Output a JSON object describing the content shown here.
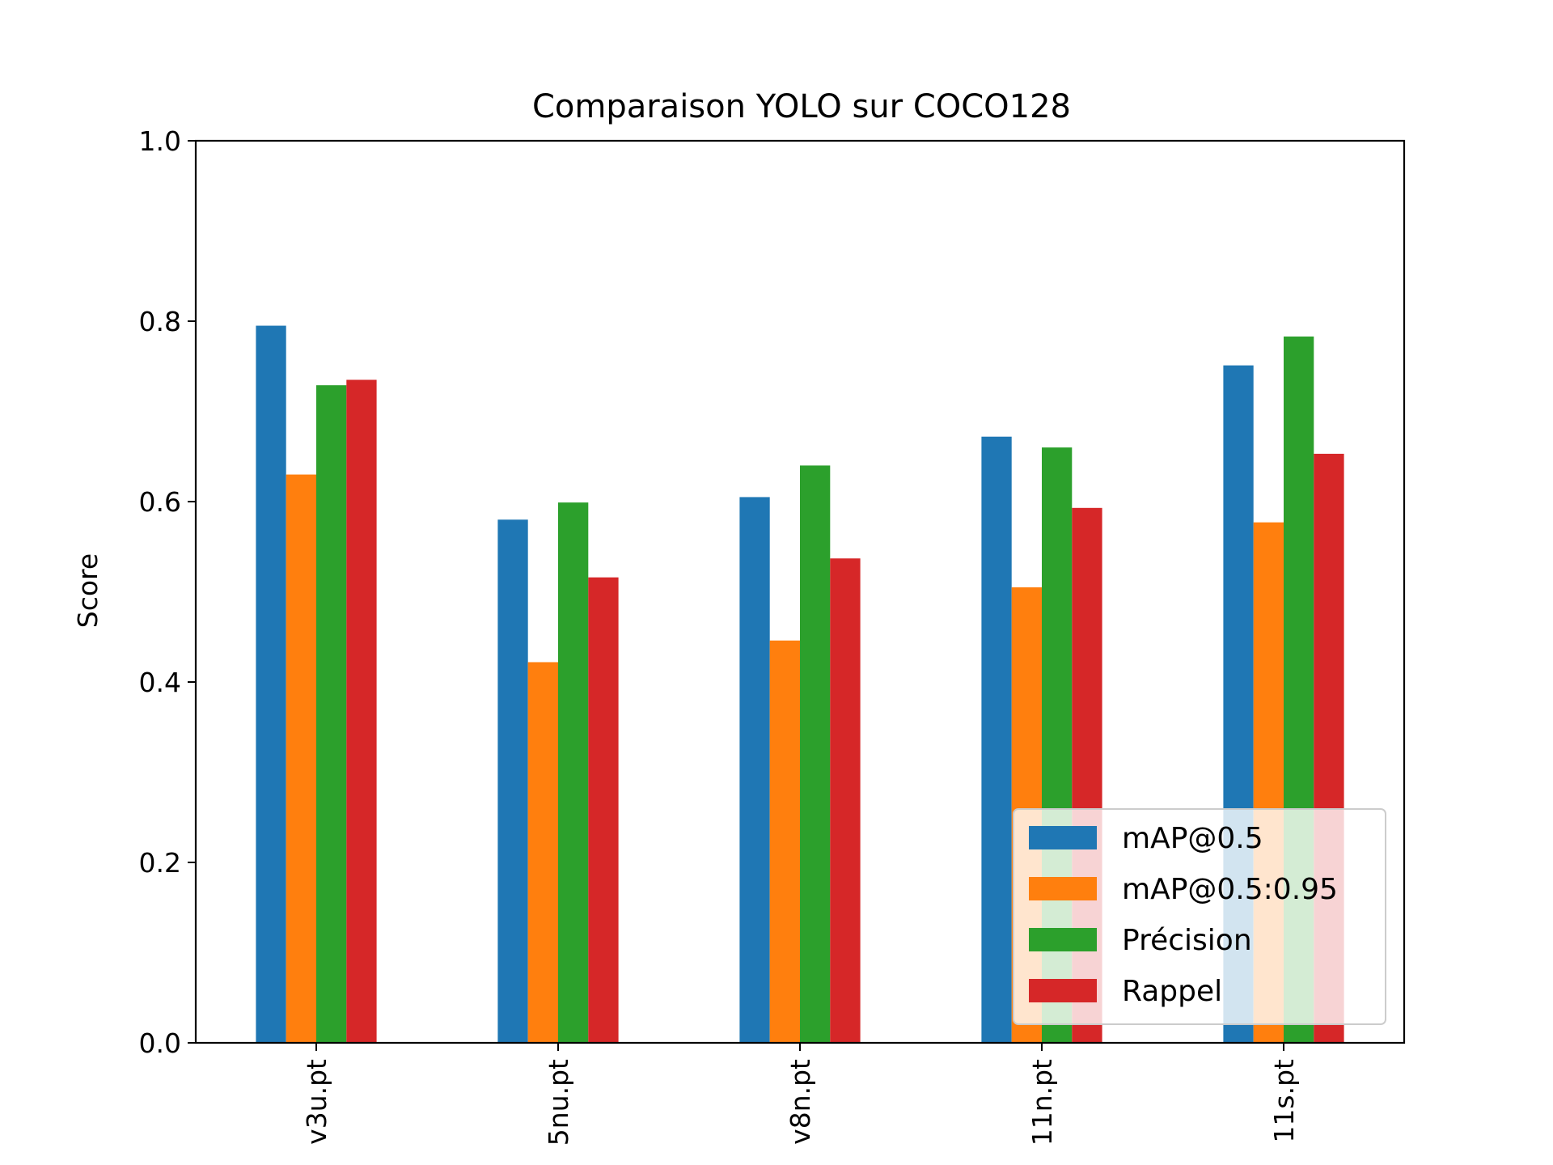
{
  "chart_data": {
    "type": "bar",
    "title": "Comparaison YOLO sur COCO128",
    "xlabel": "",
    "ylabel": "Score",
    "ylim": [
      0,
      1.0
    ],
    "yticks": [
      "0.0",
      "0.2",
      "0.4",
      "0.6",
      "0.8",
      "1.0"
    ],
    "categories": [
      "v3u.pt",
      "5nu.pt",
      "v8n.pt",
      "11n.pt",
      "11s.pt"
    ],
    "series": [
      {
        "name": "mAP@0.5",
        "color": "#1f77b4",
        "values": [
          0.795,
          0.58,
          0.605,
          0.672,
          0.751
        ]
      },
      {
        "name": "mAP@0.5:0.95",
        "color": "#ff7f0e",
        "values": [
          0.63,
          0.422,
          0.446,
          0.505,
          0.577
        ]
      },
      {
        "name": "Précision",
        "color": "#2ca02c",
        "values": [
          0.729,
          0.599,
          0.64,
          0.66,
          0.783
        ]
      },
      {
        "name": "Rappel",
        "color": "#d62728",
        "values": [
          0.735,
          0.516,
          0.537,
          0.593,
          0.653
        ]
      }
    ],
    "legend": "lower-right",
    "grid": false
  }
}
